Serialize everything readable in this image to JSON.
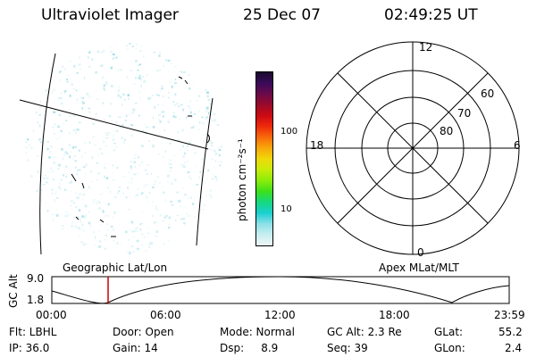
{
  "header": {
    "title": "Ultraviolet Imager",
    "date": "25 Dec 07",
    "time": "02:49:25 UT"
  },
  "colorbar": {
    "label": "photon cm⁻²s⁻¹",
    "ticks": [
      "100",
      "10"
    ],
    "colors": [
      "#1a0a2e",
      "#3a0a5a",
      "#6a0a4a",
      "#9a0a2a",
      "#cc0a14",
      "#ee2a0a",
      "#f86a0a",
      "#f8a80a",
      "#f0d80a",
      "#c8ec0a",
      "#8cec0a",
      "#3ee01a",
      "#14d880",
      "#1ad0d0",
      "#8ce0e8",
      "#c8eef0",
      "#eef6f8"
    ]
  },
  "polar_plot": {
    "mlt_labels": {
      "top": "12",
      "left": "18",
      "right": "6",
      "bottom": "0"
    },
    "lat_labels": [
      "60",
      "70",
      "80"
    ]
  },
  "timeline": {
    "left_title": "Geographic Lat/Lon",
    "right_title": "Apex MLat/MLT",
    "yaxis_label": "GC Alt",
    "y_ticks": [
      "9.0",
      "1.8"
    ],
    "x_ticks": [
      "00:00",
      "06:00",
      "12:00",
      "18:00",
      "23:59"
    ],
    "marker_time": "02:49:25",
    "marker_color": "#cc0000"
  },
  "status": {
    "flt": "Flt: LBHL",
    "ip": "IP: 36.0",
    "door": "Door: Open",
    "gain": "Gain: 14",
    "mode": "Mode: Normal",
    "dsp": "Dsp:     8.9",
    "gcalt": "GC Alt: 2.3 Re",
    "seq": "Seq: 39",
    "glat_label": "GLat:",
    "glat_value": "55.2",
    "glon_label": "GLon:",
    "glon_value": "2.4"
  }
}
